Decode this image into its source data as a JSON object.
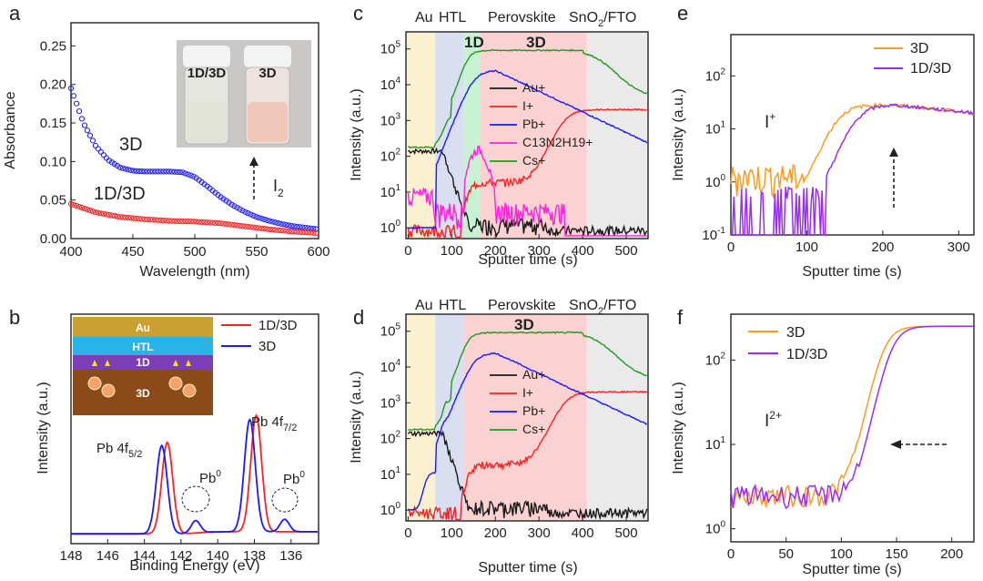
{
  "panels": {
    "a": {
      "label": "a",
      "type": "line",
      "xlabel": "Wavelength (nm)",
      "ylabel": "Absorbance",
      "xlim": [
        400,
        600
      ],
      "ylim": [
        0,
        0.28
      ],
      "xticks": [
        400,
        450,
        500,
        550,
        600
      ],
      "yticks": [
        "0.00",
        "0.05",
        "0.10",
        "0.15",
        "0.20",
        "0.25"
      ],
      "series": [
        {
          "name": "3D",
          "color": "#1a1aff",
          "x": [
            400,
            410,
            420,
            430,
            440,
            450,
            460,
            470,
            480,
            490,
            500,
            510,
            520,
            530,
            540,
            550,
            560,
            570,
            580,
            590,
            600
          ],
          "y": [
            0.195,
            0.15,
            0.12,
            0.102,
            0.092,
            0.088,
            0.087,
            0.087,
            0.087,
            0.086,
            0.08,
            0.068,
            0.055,
            0.044,
            0.035,
            0.028,
            0.023,
            0.019,
            0.016,
            0.014,
            0.012
          ]
        },
        {
          "name": "1D/3D",
          "color": "#ff2020",
          "x": [
            400,
            420,
            440,
            460,
            480,
            500,
            520,
            540,
            560,
            580,
            600
          ],
          "y": [
            0.045,
            0.034,
            0.028,
            0.025,
            0.023,
            0.022,
            0.02,
            0.016,
            0.012,
            0.009,
            0.007
          ]
        }
      ],
      "annotations": {
        "label_3d": "3D",
        "label_1d3d": "1D/3D",
        "i2": "I",
        "i2_sub": "2",
        "vial1": "1D/3D",
        "vial2": "3D"
      }
    },
    "b": {
      "label": "b",
      "type": "line",
      "xlabel": "Binding Energy (eV)",
      "ylabel": "Intensity (a.u.)",
      "xlim": [
        148,
        134.5
      ],
      "xticks": [
        148,
        146,
        144,
        142,
        140,
        138,
        136
      ],
      "legend": [
        "1D/3D",
        "3D"
      ],
      "peaks": {
        "pb4f52": "Pb 4f",
        "pb4f52_sub": "5/2",
        "pb4f72": "Pb 4f",
        "pb4f72_sub": "7/2",
        "pb0_a": "Pb",
        "pb0_b": "Pb",
        "pb0_sup": "0"
      },
      "inset": {
        "au": "Au",
        "htl": "HTL",
        "oned": "1D",
        "threed": "3D",
        "ion": "I"
      }
    },
    "c": {
      "label": "c",
      "type": "line",
      "xlabel": "Sputter time (s)",
      "ylabel": "Intensity (a.u.)",
      "xlim": [
        -5,
        550
      ],
      "ylim_log": [
        0.5,
        300000
      ],
      "xticks": [
        0,
        100,
        200,
        300,
        400,
        500
      ],
      "regions": [
        "Au",
        "HTL",
        "Perovskite",
        "SnO2/FTO",
        "1D",
        "3D"
      ],
      "region_labels": {
        "au": "Au",
        "htl": "HTL",
        "pero": "Perovskite",
        "sno": "SnO",
        "sno_sub": "2",
        "sno_rest": "/FTO",
        "oned": "1D",
        "threed": "3D"
      },
      "legend": [
        "Au+",
        "I+",
        "Pb+",
        "C13N2H19+",
        "Cs+"
      ]
    },
    "d": {
      "label": "d",
      "type": "line",
      "xlabel": "Sputter time (s)",
      "ylabel": "Intensity (a.u.)",
      "xlim": [
        -5,
        550
      ],
      "xticks": [
        0,
        100,
        200,
        300,
        400,
        500
      ],
      "region_labels": {
        "au": "Au",
        "htl": "HTL",
        "pero": "Perovskite",
        "sno": "SnO",
        "sno_sub": "2",
        "sno_rest": "/FTO",
        "threed": "3D"
      },
      "legend": [
        "Au+",
        "I+",
        "Pb+",
        "Cs+"
      ]
    },
    "e": {
      "label": "e",
      "type": "line",
      "xlabel": "Sputter time (s)",
      "ylabel": "Intensity (a.u.)",
      "xlim": [
        0,
        320
      ],
      "xticks": [
        0,
        100,
        200,
        300
      ],
      "legend": [
        "3D",
        "1D/3D"
      ],
      "ion": "I",
      "ion_sup": "+"
    },
    "f": {
      "label": "f",
      "type": "line",
      "xlabel": "Sputter time (s)",
      "ylabel": "Intensity (a.u.)",
      "xlim": [
        0,
        220
      ],
      "xticks": [
        0,
        50,
        100,
        150,
        200
      ],
      "legend": [
        "3D",
        "1D/3D"
      ],
      "ion": "I",
      "ion_sup": "2+"
    }
  },
  "chart_data": [
    {
      "type": "line",
      "panel": "a",
      "title": "",
      "xlabel": "Wavelength (nm)",
      "ylabel": "Absorbance",
      "xlim": [
        400,
        600
      ],
      "ylim": [
        0,
        0.28
      ],
      "series": [
        {
          "name": "3D",
          "x": [
            400,
            450,
            500,
            550,
            600
          ],
          "values": [
            0.195,
            0.088,
            0.08,
            0.028,
            0.012
          ]
        },
        {
          "name": "1D/3D",
          "x": [
            400,
            450,
            500,
            550,
            600
          ],
          "values": [
            0.045,
            0.026,
            0.022,
            0.014,
            0.007
          ]
        }
      ]
    },
    {
      "type": "line",
      "panel": "b",
      "xlabel": "Binding Energy (eV)",
      "ylabel": "Intensity (a.u.)",
      "xlim": [
        148,
        134.5
      ],
      "series": [
        {
          "name": "1D/3D",
          "peaks_eV": [
            142.7,
            137.9
          ]
        },
        {
          "name": "3D",
          "peaks_eV": [
            143.0,
            138.2,
            141.2,
            136.3
          ]
        }
      ]
    },
    {
      "type": "line",
      "panel": "c",
      "xlabel": "Sputter time (s)",
      "ylabel": "Intensity (a.u.)",
      "yscale": "log",
      "ylim": [
        0.5,
        300000
      ],
      "xlim": [
        -5,
        550
      ],
      "series": [
        {
          "name": "Au+"
        },
        {
          "name": "I+"
        },
        {
          "name": "Pb+"
        },
        {
          "name": "C13N2H19+"
        },
        {
          "name": "Cs+"
        }
      ]
    },
    {
      "type": "line",
      "panel": "d",
      "xlabel": "Sputter time (s)",
      "ylabel": "Intensity (a.u.)",
      "yscale": "log",
      "ylim": [
        0.5,
        300000
      ],
      "xlim": [
        -5,
        550
      ],
      "series": [
        {
          "name": "Au+"
        },
        {
          "name": "I+"
        },
        {
          "name": "Pb+"
        },
        {
          "name": "Cs+"
        }
      ]
    },
    {
      "type": "line",
      "panel": "e",
      "xlabel": "Sputter time (s)",
      "ylabel": "Intensity (a.u.)",
      "yscale": "log",
      "ylim": [
        0.1,
        500
      ],
      "xlim": [
        0,
        320
      ],
      "series": [
        {
          "name": "3D"
        },
        {
          "name": "1D/3D"
        }
      ]
    },
    {
      "type": "line",
      "panel": "f",
      "xlabel": "Sputter time (s)",
      "ylabel": "Intensity (a.u.)",
      "yscale": "log",
      "ylim": [
        0.7,
        350
      ],
      "xlim": [
        0,
        220
      ],
      "series": [
        {
          "name": "3D"
        },
        {
          "name": "1D/3D"
        }
      ]
    }
  ],
  "colors": {
    "blue": "#1a1aff",
    "red": "#ff2020",
    "black": "#1a1a1a",
    "magenta": "#ff22dd",
    "green": "#1f9a1f",
    "orange": "#ff9a1f",
    "purple": "#9a2bff",
    "au_band": "#fbf0cf",
    "htl_band": "#d9dff0",
    "pero_band": "#fbd2d2",
    "oned_band": "#c9f2d2",
    "sno_band": "#eaeaea"
  },
  "tick_labels_log_c": [
    "10",
    "10",
    "10",
    "10",
    "10",
    "10"
  ],
  "log_exp_c": [
    "0",
    "1",
    "2",
    "3",
    "4",
    "5"
  ],
  "log_exp_e": [
    "-1",
    "0",
    "1",
    "2"
  ],
  "log_exp_f": [
    "0",
    "1",
    "2"
  ]
}
